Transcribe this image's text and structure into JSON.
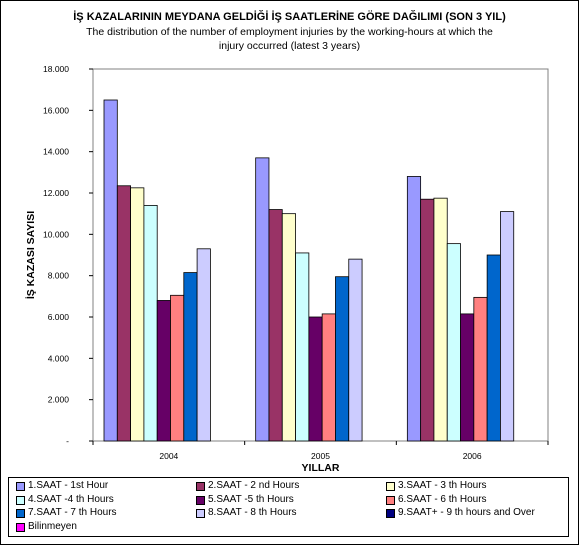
{
  "chart_data": {
    "type": "bar",
    "title": "İŞ KAZALARININ MEYDANA GELDİĞİ İŞ SAATLERİNE GÖRE DAĞILIMI (SON 3 YIL)",
    "subtitle_line1": "The distribution of the number of employment injuries by the working-hours at which the",
    "subtitle_line2": "injury occurred (latest 3 years)",
    "xlabel": "YILLAR",
    "ylabel": "İŞ KAZASI SAYISI",
    "categories": [
      "2004",
      "2005",
      "2006"
    ],
    "ylim": [
      0,
      18000
    ],
    "yticks": [
      0,
      2000,
      4000,
      6000,
      8000,
      10000,
      12000,
      14000,
      16000,
      18000
    ],
    "ytick_labels": [
      "-",
      "2.000",
      "4.000",
      "6.000",
      "8.000",
      "10.000",
      "12.000",
      "14.000",
      "16.000",
      "18.000"
    ],
    "grid": false,
    "legend_position": "bottom",
    "series": [
      {
        "name": "1.SAAT - 1st Hour",
        "color": "#9999FF",
        "values": [
          16500,
          13700,
          12800
        ]
      },
      {
        "name": "2.SAAT - 2 nd Hours",
        "color": "#993366",
        "values": [
          12350,
          11200,
          11700
        ]
      },
      {
        "name": "3.SAAT - 3 th Hours",
        "color": "#FFFFCC",
        "values": [
          12250,
          11000,
          11750
        ]
      },
      {
        "name": "4.SAAT -4 th  Hours",
        "color": "#CCFFFF",
        "values": [
          11400,
          9100,
          9550
        ]
      },
      {
        "name": "5.SAAT -5 th  Hours",
        "color": "#660066",
        "values": [
          6800,
          6000,
          6150
        ]
      },
      {
        "name": "6.SAAT - 6 th  Hours",
        "color": "#FF8080",
        "values": [
          7050,
          6150,
          6950
        ]
      },
      {
        "name": "7.SAAT - 7 th  Hours",
        "color": "#0066CC",
        "values": [
          8150,
          7950,
          9000
        ]
      },
      {
        "name": "8.SAAT - 8 th Hours",
        "color": "#CCCCFF",
        "values": [
          9300,
          8800,
          11100
        ]
      },
      {
        "name": "9.SAAT+ - 9 th hours and Over",
        "color": "#000080",
        "values": [
          0,
          0,
          0
        ]
      },
      {
        "name": "Bilinmeyen",
        "color": "#FF00FF",
        "values": [
          0,
          0,
          0
        ]
      }
    ]
  }
}
